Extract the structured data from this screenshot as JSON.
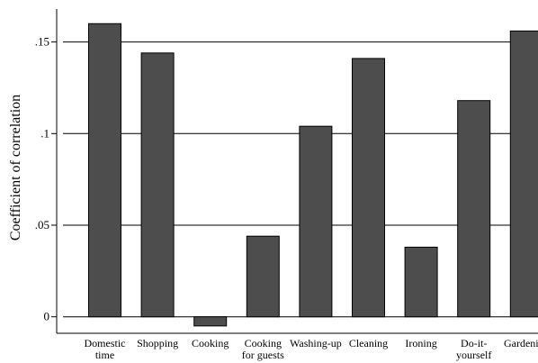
{
  "chart_data": {
    "type": "bar",
    "categories": [
      [
        "Domestic",
        "time"
      ],
      [
        "Shopping"
      ],
      [
        "Cooking"
      ],
      [
        "Cooking",
        "for guests"
      ],
      [
        "Washing-up"
      ],
      [
        "Cleaning"
      ],
      [
        "Ironing"
      ],
      [
        "Do-it-",
        "yourself"
      ],
      [
        "Gardening"
      ]
    ],
    "values": [
      0.16,
      0.144,
      -0.005,
      0.044,
      0.104,
      0.141,
      0.038,
      0.118,
      0.156
    ],
    "title": "",
    "xlabel": "",
    "ylabel": "Coefficient of correlation",
    "ylim": [
      -0.009,
      0.168
    ],
    "yticks": [
      0,
      0.05,
      0.1,
      0.15
    ],
    "ytick_labels": [
      "0",
      ".05",
      ".1",
      ".15"
    ],
    "grid": true,
    "bar_color": "#4d4d4d",
    "grid_color": "#000000"
  }
}
